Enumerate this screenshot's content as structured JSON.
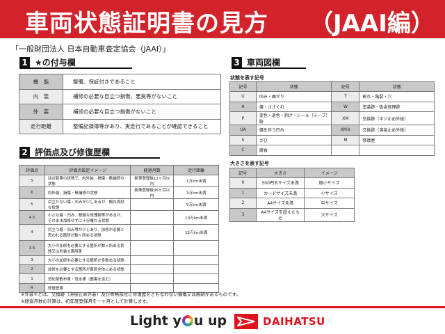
{
  "banner": {
    "title": "車両状態証明書の見方",
    "suffix": "（JAAI編）"
  },
  "subtitle": "「一般財団法人 日本自動車査定協会（JAAI）」",
  "section1": {
    "num": "1",
    "title": "★の付与欄",
    "rows": [
      {
        "k": "機　能",
        "v": "整備、保証付きであること"
      },
      {
        "k": "内　装",
        "v": "補修の必要な目立つ損傷、悪臭等がないこと"
      },
      {
        "k": "外　装",
        "v": "補修の必要な目立つ損傷がないこと"
      },
      {
        "k": "走行距離",
        "v": "整備記録簿等があり、実走行であることが確認できること"
      }
    ]
  },
  "section2": {
    "num": "2",
    "title": "評価点及び修復歴欄",
    "headers": [
      "評価点",
      "評価点設定イメージ",
      "経過月数",
      "走行距離"
    ],
    "rows": [
      [
        "S",
        "ほぼ新車の状態で、内外装、損傷・無補修の状態",
        "新車登録後12ヶ月以内",
        "1万km未満"
      ],
      [
        "6",
        "内外装、損傷・無補修の状態",
        "新車登録後36ヶ月以内",
        "3万km未満"
      ],
      [
        "5",
        "目立たない傷・凹みが少しあるが、概ね良好な状態",
        "",
        "5万km未満"
      ],
      [
        "4.5",
        "小さな傷・凹み、軽微な修理跡等があるが、そのまま加修せずに十分乗れる状態",
        "",
        "10万km未満"
      ],
      [
        "4",
        "目立つ傷・凹み等が少しあり、加修が必要と思われる箇所が数ヶ所ある状態",
        "",
        "15万km未満"
      ],
      [
        "3.5",
        "大小の加修を必要とする箇所が数ヶ所ある状態又は外装②適用車",
        "",
        ""
      ],
      [
        "3",
        "大小の加修を必要とする箇所が多数ある状態",
        "",
        ""
      ],
      [
        "2",
        "加修を必要とする箇所が車両全体にある状態",
        "",
        ""
      ],
      [
        "1",
        "消化剤散布車・冠水車（塵害を含む）",
        "",
        ""
      ],
      [
        "R",
        "修復歴車",
        "",
        ""
      ]
    ]
  },
  "notes": [
    "※外装②とは、交換跡（溶接止め外装）及び骨格部位に修復歴をともなわない損傷又は痕跡があるものです。",
    "※経過月数の計算は、初年度登録月を一ヶ月として計算します。"
  ],
  "section3": {
    "num": "3",
    "title": "車両図欄",
    "state_caption": "状態を表す記号",
    "state_headers": [
      "記号",
      "状態",
      "記号",
      "状態"
    ],
    "state_rows": [
      [
        "U",
        "凹み・曲がり",
        "T",
        "割れ・亀裂・穴"
      ],
      [
        "A",
        "傷・ささくれ",
        "W",
        "塗装跡・板金修理跡"
      ],
      [
        "P",
        "変色・退色・剥げ・シール（テープ）跡",
        "XM",
        "交換跡（ネジ止め外板）"
      ],
      [
        "UA",
        "傷を伴う凹み",
        "XM②",
        "交換跡（溶接止め外板）"
      ],
      [
        "S",
        "さび",
        "M",
        "修復歴"
      ],
      [
        "C",
        "腐食",
        "",
        ""
      ]
    ],
    "size_caption": "大きさを表す記号",
    "size_headers": [
      "記号",
      "大きさ",
      "イメージ"
    ],
    "size_rows": [
      [
        "0",
        "500円玉サイズ未満",
        "極小サイズ"
      ],
      [
        "1",
        "カードサイズ未満",
        "小サイズ"
      ],
      [
        "2",
        "A4サイズ未満",
        "中サイズ"
      ],
      [
        "3",
        "A4サイズを超えたもの",
        "大サイズ"
      ]
    ]
  },
  "footer": {
    "slogan_a": "Light y",
    "slogan_b": "u up",
    "brand": "DAIHATSU",
    "brand_color": "#e0121b"
  }
}
